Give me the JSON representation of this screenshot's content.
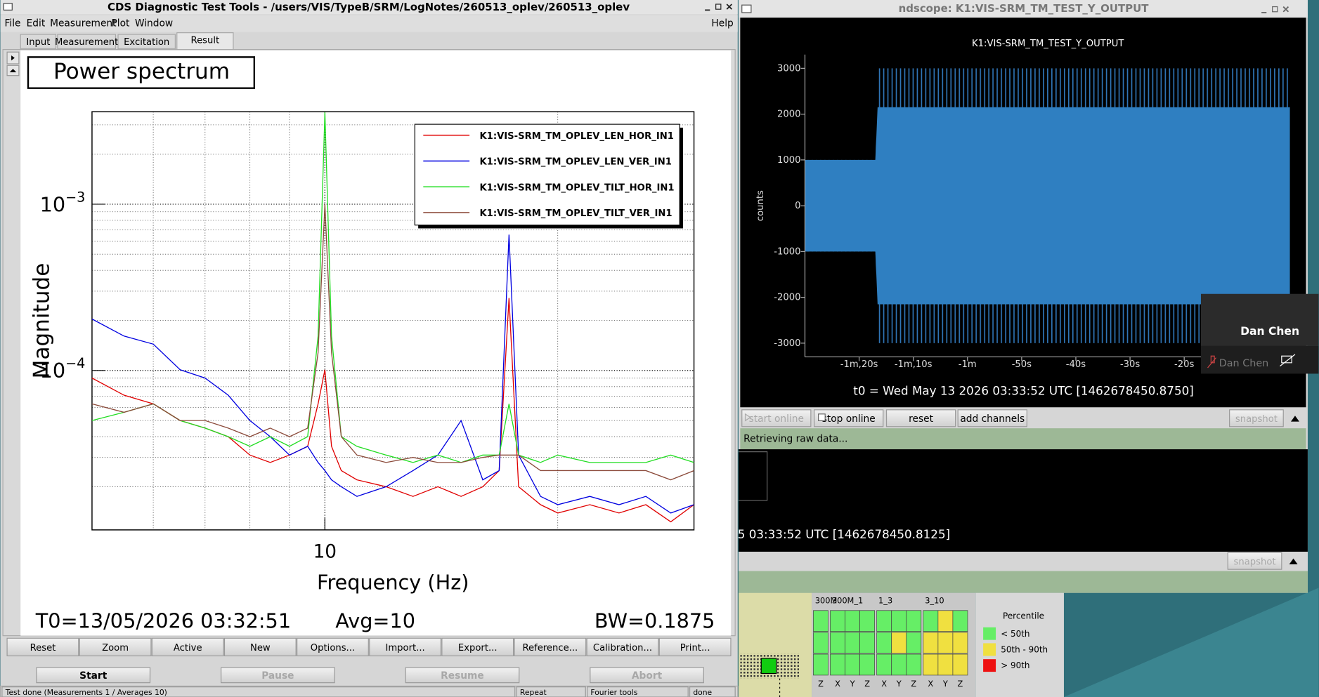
{
  "dtt": {
    "window_title": "CDS Diagnostic Test Tools - /users/VIS/TypeB/SRM/LogNotes/260513_oplev/260513_oplev",
    "menu": [
      "File",
      "Edit",
      "Measurement",
      "Plot",
      "Window"
    ],
    "help": "Help",
    "tabs": [
      "Input",
      "Measurement",
      "Excitation",
      "Result"
    ],
    "active_tab": 3,
    "plot_title": "Power spectrum",
    "spectrum": {
      "type": "line",
      "x_label": "Frequency (Hz)",
      "y_label": "Magnitude",
      "xlog": true,
      "ylog": true,
      "grid": true,
      "legend": "top-right",
      "xlim": [
        5,
        30
      ],
      "ylim": [
        1.1e-05,
        0.0036
      ],
      "xticks": [
        10
      ],
      "yticks": [
        {
          "value": 0.001,
          "label": "10",
          "exponent": "−3"
        },
        {
          "value": 0.0001,
          "label": "10",
          "exponent": "−4"
        }
      ],
      "x": [
        5,
        5.5,
        6,
        6.5,
        7,
        7.5,
        8,
        8.5,
        9,
        9.5,
        9.8,
        10,
        10.2,
        10.5,
        11,
        12,
        13,
        14,
        15,
        16,
        16.8,
        17.3,
        17.8,
        19,
        20,
        22,
        24,
        26,
        28,
        30
      ],
      "series": [
        {
          "name": "K1:VIS-SRM_TM_OPLEV_LEN_HOR_IN1",
          "color": "#e00000",
          "values": [
            9e-05,
            7.1e-05,
            6.3e-05,
            5e-05,
            4.5e-05,
            4e-05,
            3.1e-05,
            2.8e-05,
            3.1e-05,
            3.5e-05,
            6.3e-05,
            0.000101,
            3.5e-05,
            2.5e-05,
            2.2e-05,
            2e-05,
            1.75e-05,
            2e-05,
            1.75e-05,
            2e-05,
            2.5e-05,
            0.000273,
            2e-05,
            1.56e-05,
            1.39e-05,
            1.56e-05,
            1.39e-05,
            1.56e-05,
            1.23e-05,
            1.56e-05
          ]
        },
        {
          "name": "K1:VIS-SRM_TM_OPLEV_LEN_VER_IN1",
          "color": "#0000e0",
          "values": [
            0.000204,
            0.000161,
            0.000144,
            0.000101,
            9e-05,
            7.1e-05,
            5e-05,
            4e-05,
            3.1e-05,
            3.5e-05,
            2.8e-05,
            2.5e-05,
            2.2e-05,
            2e-05,
            1.75e-05,
            2e-05,
            2.5e-05,
            3.1e-05,
            5e-05,
            2.2e-05,
            2.5e-05,
            0.000656,
            3.1e-05,
            1.75e-05,
            1.56e-05,
            1.75e-05,
            1.56e-05,
            1.75e-05,
            1.39e-05,
            1.56e-05
          ]
        },
        {
          "name": "K1:VIS-SRM_TM_OPLEV_TILT_HOR_IN1",
          "color": "#22dd22",
          "values": [
            5e-05,
            5.6e-05,
            6.3e-05,
            5e-05,
            4.5e-05,
            4e-05,
            3.5e-05,
            4e-05,
            3.5e-05,
            4e-05,
            0.000161,
            0.00357,
            0.000161,
            4e-05,
            3.5e-05,
            3.1e-05,
            2.8e-05,
            3.1e-05,
            2.8e-05,
            3.1e-05,
            3.1e-05,
            6.3e-05,
            3.1e-05,
            2.8e-05,
            3.1e-05,
            2.8e-05,
            2.8e-05,
            2.8e-05,
            3.1e-05,
            2.8e-05
          ]
        },
        {
          "name": "K1:VIS-SRM_TM_OPLEV_TILT_VER_IN1",
          "color": "#8b4a3a",
          "values": [
            6.3e-05,
            5.6e-05,
            6.3e-05,
            5e-05,
            5e-05,
            4.5e-05,
            4e-05,
            4.5e-05,
            4e-05,
            4.5e-05,
            0.000128,
            0.001,
            0.000128,
            4e-05,
            3.1e-05,
            2.8e-05,
            3e-05,
            2.8e-05,
            2.8e-05,
            3e-05,
            3.1e-05,
            3.1e-05,
            3.1e-05,
            2.5e-05,
            2.5e-05,
            2.5e-05,
            2.5e-05,
            2.5e-05,
            2.2e-05,
            2.5e-05
          ]
        }
      ]
    },
    "t0": "T0=13/05/2026 03:32:51",
    "avg": "Avg=10",
    "bw": "BW=0.1875",
    "buttons": [
      "Reset",
      "Zoom",
      "Active",
      "New",
      "Options...",
      "Import...",
      "Export...",
      "Reference...",
      "Calibration...",
      "Print..."
    ],
    "run_buttons": [
      "Start",
      "Pause",
      "Resume",
      "Abort"
    ],
    "status": [
      "Test done (Measurements 1 / Averages 10)",
      "Repeat",
      "Fourier tools",
      "done"
    ]
  },
  "ndscope": {
    "window_title": "ndscope: K1:VIS-SRM_TM_TEST_Y_OUTPUT",
    "plot": {
      "type": "area",
      "title": "K1:VIS-SRM_TM_TEST_Y_OUTPUT",
      "y_label": "counts",
      "xlim": [
        -90,
        0
      ],
      "ylim": [
        -3300,
        3300
      ],
      "yticks": [
        {
          "value": 3000,
          "label": "3000"
        },
        {
          "value": 2000,
          "label": "2000"
        },
        {
          "value": 1000,
          "label": "1000"
        },
        0,
        {
          "value": -1000,
          "label": "-1000"
        },
        {
          "value": -2000,
          "label": "-2000"
        },
        {
          "value": -3000,
          "label": "-3000"
        }
      ],
      "xticks": [
        {
          "value": -80,
          "label": "-1m,20s"
        },
        {
          "value": -70,
          "label": "-1m,10s"
        },
        {
          "value": -60,
          "label": "-1m"
        },
        {
          "value": -50,
          "label": "-50s"
        },
        {
          "value": -40,
          "label": "-40s"
        },
        {
          "value": -30,
          "label": "-30s"
        },
        {
          "value": -20,
          "label": "-20s"
        }
      ],
      "series": [
        {
          "color": "#2f74b5",
          "style": "spikes",
          "x": [
            -90,
            -77,
            -76.6,
            -0.5
          ],
          "max": [
            1000,
            1000,
            3000,
            3000
          ],
          "min": [
            -1000,
            -1000,
            -3000,
            -3000
          ]
        },
        {
          "color": "#2f7fc1",
          "style": "fill",
          "x": [
            -90,
            -77,
            -76.6,
            -0.5
          ],
          "max": [
            1000,
            1000,
            2150,
            2150
          ],
          "min": [
            -1000,
            -1000,
            -2150,
            -2150
          ]
        }
      ]
    },
    "t0": "t0 = Wed May 13 2026 03:33:52 UTC [1462678450.8750]",
    "buttons": [
      "start online",
      "stop online",
      "reset",
      "add channels"
    ],
    "snapshot": "snapshot",
    "status": "Retrieving raw data...",
    "t0_second": "5 03:33:52 UTC [1462678450.8125]",
    "snapshot_second": "snapshot"
  },
  "notification": {
    "user": "Dan Chen",
    "user_sub": "Dan Chen"
  },
  "monitor": {
    "groups": [
      {
        "label": "300M",
        "axes": [
          "Z"
        ],
        "cells": [
          [
            "#66ee66"
          ],
          [
            "#66ee66"
          ],
          [
            "#66ee66"
          ]
        ]
      },
      {
        "label": "300M_1",
        "axes": [
          "X",
          "Y",
          "Z"
        ],
        "cells": [
          [
            "#66ee66",
            "#66ee66",
            "#66ee66"
          ],
          [
            "#66ee66",
            "#66ee66",
            "#66ee66"
          ],
          [
            "#66ee66",
            "#66ee66",
            "#66ee66"
          ]
        ]
      },
      {
        "label": "1_3",
        "axes": [
          "X",
          "Y",
          "Z"
        ],
        "cells": [
          [
            "#66ee66",
            "#66ee66",
            "#66ee66"
          ],
          [
            "#66ee66",
            "#f0e040",
            "#66ee66"
          ],
          [
            "#66ee66",
            "#66ee66",
            "#66ee66"
          ]
        ]
      },
      {
        "label": "3_10",
        "axes": [
          "X",
          "Y",
          "Z"
        ],
        "cells": [
          [
            "#66ee66",
            "#f0e040",
            "#66ee66"
          ],
          [
            "#f0e040",
            "#f0e040",
            "#f0e040"
          ],
          [
            "#f0e040",
            "#f0e040",
            "#f0e040"
          ]
        ]
      }
    ],
    "legend_title": "Percentile",
    "legend": [
      {
        "label": "< 50th",
        "color": "#66ee66"
      },
      {
        "label": "50th - 90th",
        "color": "#f0e040"
      },
      {
        "label": "> 90th",
        "color": "#ee1111"
      }
    ]
  }
}
